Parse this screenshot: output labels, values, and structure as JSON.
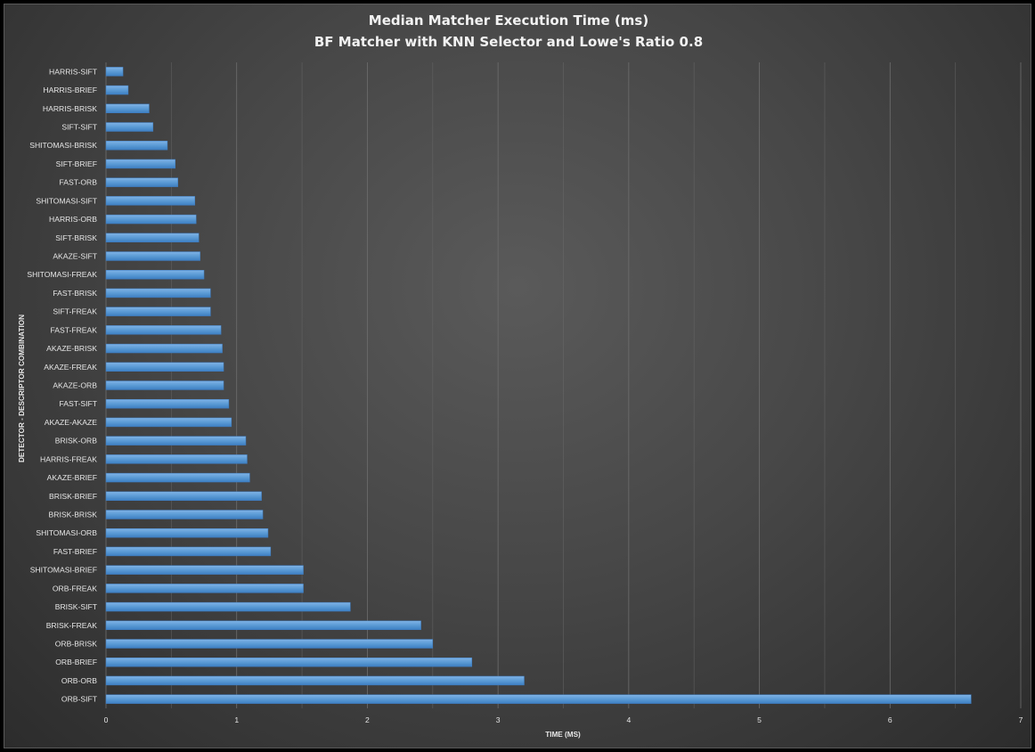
{
  "chart_data": {
    "type": "bar",
    "orientation": "horizontal",
    "title": "Median Matcher Execution Time (ms)",
    "subtitle": "BF Matcher with KNN Selector and Lowe's Ratio 0.8",
    "xlabel": "TIME (MS)",
    "ylabel": "DETECTOR - DESCRIPTOR COMBINATION",
    "xlim": [
      0,
      7
    ],
    "xticks": [
      0,
      1,
      2,
      3,
      4,
      5,
      6,
      7
    ],
    "grid": "vertical",
    "legend": "none",
    "bar_color": "#5b9bd5",
    "categories": [
      "HARRIS-SIFT",
      "HARRIS-BRIEF",
      "HARRIS-BRISK",
      "SIFT-SIFT",
      "SHITOMASI-BRISK",
      "SIFT-BRIEF",
      "FAST-ORB",
      "SHITOMASI-SIFT",
      "HARRIS-ORB",
      "SIFT-BRISK",
      "AKAZE-SIFT",
      "SHITOMASI-FREAK",
      "FAST-BRISK",
      "SIFT-FREAK",
      "FAST-FREAK",
      "AKAZE-BRISK",
      "AKAZE-FREAK",
      "AKAZE-ORB",
      "FAST-SIFT",
      "AKAZE-AKAZE",
      "BRISK-ORB",
      "HARRIS-FREAK",
      "AKAZE-BRIEF",
      "BRISK-BRIEF",
      "BRISK-BRISK",
      "SHITOMASI-ORB",
      "FAST-BRIEF",
      "SHITOMASI-BRIEF",
      "ORB-FREAK",
      "BRISK-SIFT",
      "BRISK-FREAK",
      "ORB-BRISK",
      "ORB-BRIEF",
      "ORB-ORB",
      "ORB-SIFT"
    ],
    "values": [
      0.13,
      0.17,
      0.33,
      0.36,
      0.47,
      0.53,
      0.55,
      0.68,
      0.69,
      0.71,
      0.72,
      0.75,
      0.8,
      0.8,
      0.88,
      0.89,
      0.9,
      0.9,
      0.94,
      0.96,
      1.07,
      1.08,
      1.1,
      1.19,
      1.2,
      1.24,
      1.26,
      1.51,
      1.51,
      1.87,
      2.41,
      2.5,
      2.8,
      3.2,
      6.62
    ]
  }
}
